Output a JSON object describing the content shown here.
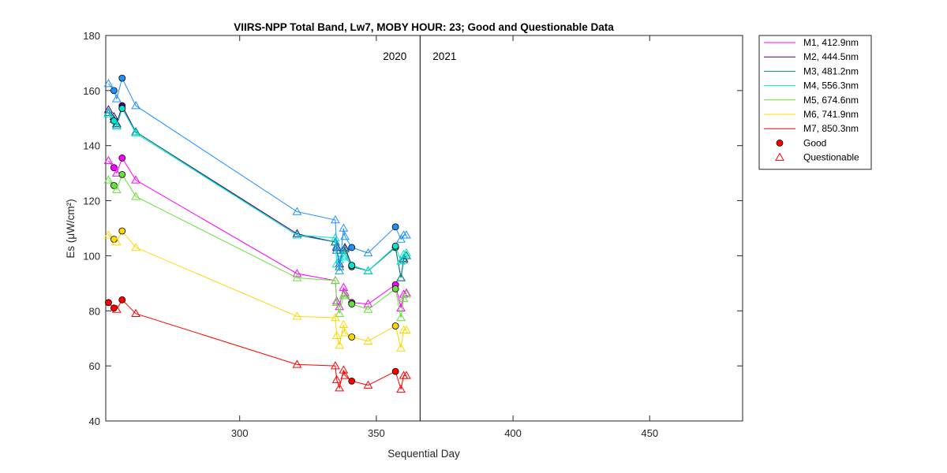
{
  "chart_data": {
    "type": "line",
    "title": "VIIRS-NPP Total Band,  Lw7, MOBY HOUR: 23;  Good and Questionable Data",
    "xlabel": "Sequential Day",
    "ylabel": "Es (μW/cm²)",
    "xlim": [
      251,
      484
    ],
    "ylim": [
      40,
      180
    ],
    "x_ticks": [
      "300",
      "350",
      "400",
      "450"
    ],
    "x_tick_values": [
      300,
      350,
      400,
      450
    ],
    "y_ticks": [
      "40",
      "60",
      "80",
      "100",
      "120",
      "140",
      "160",
      "180"
    ],
    "y_tick_values": [
      40,
      60,
      80,
      100,
      120,
      140,
      160,
      180
    ],
    "grid": false,
    "legend_position": "outside-right",
    "year_divider": {
      "x": 366,
      "left_label": "2020",
      "right_label": "2021"
    },
    "markers": [
      {
        "label": "Good",
        "shape": "circle",
        "color": "#ff0000"
      },
      {
        "label": "Questionable",
        "shape": "triangle",
        "color": "#ff0000"
      }
    ],
    "series": [
      {
        "name": "M1, 412.9nm",
        "color": "#ff00ff",
        "points": [
          [
            252,
            134.5,
            "Q"
          ],
          [
            254,
            132,
            "G"
          ],
          [
            255,
            130,
            "Q"
          ],
          [
            257,
            135.5,
            "G"
          ],
          [
            262,
            127.5,
            "Q"
          ],
          [
            321,
            93.5,
            "Q"
          ],
          [
            335,
            91,
            "Q"
          ],
          [
            335.5,
            83.5,
            "Q"
          ],
          [
            336.5,
            81.5,
            "Q"
          ],
          [
            338,
            88.5,
            "Q"
          ],
          [
            338.5,
            86.5,
            "Q"
          ],
          [
            341,
            83,
            "G"
          ],
          [
            347,
            82.5,
            "Q"
          ],
          [
            357,
            89.5,
            "G"
          ],
          [
            359,
            81,
            "Q"
          ],
          [
            360,
            86,
            "Q"
          ],
          [
            361,
            86.5,
            "Q"
          ]
        ]
      },
      {
        "name": "M2, 444.5nm",
        "color": "#4b0082",
        "points": [
          [
            252,
            153,
            "Q"
          ],
          [
            254,
            150.5,
            "Q"
          ],
          [
            255,
            148,
            "Q"
          ],
          [
            257,
            154.5,
            "G"
          ],
          [
            262,
            145,
            "Q"
          ],
          [
            321,
            108,
            "Q"
          ],
          [
            335,
            105,
            "Q"
          ],
          [
            335.5,
            103,
            "Q"
          ],
          [
            336.5,
            97,
            "Q"
          ],
          [
            338,
            102,
            "Q"
          ],
          [
            338.5,
            103,
            "Q"
          ],
          [
            341,
            96.5,
            "G"
          ],
          [
            347,
            94.5,
            "Q"
          ],
          [
            357,
            103,
            "G"
          ],
          [
            359,
            92,
            "Q"
          ],
          [
            360,
            99,
            "Q"
          ],
          [
            361,
            100,
            "Q"
          ]
        ]
      },
      {
        "name": "M3, 481.2nm",
        "color": "#008b8b",
        "points": [
          [
            252,
            152,
            "Q"
          ],
          [
            254,
            149.5,
            "Q"
          ],
          [
            255,
            147.5,
            "Q"
          ],
          [
            257,
            153.5,
            "G"
          ],
          [
            262,
            145,
            "Q"
          ],
          [
            321,
            107.5,
            "Q"
          ],
          [
            335,
            105,
            "Q"
          ],
          [
            335.5,
            102,
            "Q"
          ],
          [
            336.5,
            96,
            "Q"
          ],
          [
            338,
            102,
            "Q"
          ],
          [
            338.5,
            102.5,
            "Q"
          ],
          [
            341,
            96,
            "G"
          ],
          [
            347,
            94.5,
            "Q"
          ],
          [
            357,
            103,
            "G"
          ],
          [
            359,
            92,
            "Q"
          ],
          [
            360,
            98.5,
            "Q"
          ],
          [
            361,
            100,
            "Q"
          ]
        ]
      },
      {
        "name": "M4, 556.3nm",
        "color": "#00e5cc",
        "points": [
          [
            252,
            151.5,
            "Q"
          ],
          [
            254,
            149,
            "G"
          ],
          [
            255,
            147,
            "Q"
          ],
          [
            257,
            153.5,
            "G"
          ],
          [
            262,
            144.5,
            "Q"
          ],
          [
            321,
            107.5,
            "Q"
          ],
          [
            335,
            106.5,
            "Q"
          ],
          [
            335.5,
            97,
            "Q"
          ],
          [
            336.5,
            98.5,
            "Q"
          ],
          [
            338,
            100,
            "Q"
          ],
          [
            338.5,
            99.5,
            "Q"
          ],
          [
            341,
            96.5,
            "G"
          ],
          [
            347,
            94.5,
            "Q"
          ],
          [
            357,
            103.5,
            "G"
          ],
          [
            359,
            98,
            "Q"
          ],
          [
            360,
            100.5,
            "Q"
          ],
          [
            361,
            101,
            "Q"
          ]
        ]
      },
      {
        "name": "M5, 674.6nm",
        "color": "#66e03a",
        "points": [
          [
            252,
            127.5,
            "Q"
          ],
          [
            254,
            125.5,
            "G"
          ],
          [
            255,
            124,
            "Q"
          ],
          [
            257,
            129.5,
            "G"
          ],
          [
            262,
            121.5,
            "Q"
          ],
          [
            321,
            92,
            "Q"
          ],
          [
            335,
            91,
            "Q"
          ],
          [
            335.5,
            83,
            "Q"
          ],
          [
            336.5,
            79,
            "Q"
          ],
          [
            338,
            85.5,
            "Q"
          ],
          [
            338.5,
            86,
            "Q"
          ],
          [
            341,
            82.5,
            "G"
          ],
          [
            347,
            80.5,
            "Q"
          ],
          [
            357,
            88,
            "G"
          ],
          [
            359,
            77.5,
            "Q"
          ],
          [
            360,
            84.5,
            "Q"
          ],
          [
            361,
            86,
            "Q"
          ]
        ]
      },
      {
        "name": "M6, 741.9nm",
        "color": "#ffd700",
        "points": [
          [
            252,
            107.5,
            "Q"
          ],
          [
            254,
            106,
            "G"
          ],
          [
            255,
            105,
            "Q"
          ],
          [
            257,
            109,
            "G"
          ],
          [
            262,
            103,
            "Q"
          ],
          [
            321,
            78,
            "Q"
          ],
          [
            335,
            77.5,
            "Q"
          ],
          [
            335.5,
            71,
            "Q"
          ],
          [
            336.5,
            67.5,
            "Q"
          ],
          [
            338,
            75,
            "Q"
          ],
          [
            338.5,
            72,
            "Q"
          ],
          [
            341,
            70.5,
            "G"
          ],
          [
            347,
            69,
            "Q"
          ],
          [
            357,
            74.5,
            "G"
          ],
          [
            359,
            66.5,
            "Q"
          ],
          [
            360,
            73,
            "Q"
          ],
          [
            361,
            73,
            "Q"
          ]
        ]
      },
      {
        "name": "M7, 850.3nm",
        "color": "#ff0000",
        "points": [
          [
            252,
            83,
            "G"
          ],
          [
            254,
            81,
            "G"
          ],
          [
            255,
            80.5,
            "Q"
          ],
          [
            257,
            84,
            "G"
          ],
          [
            262,
            79,
            "Q"
          ],
          [
            321,
            60.5,
            "Q"
          ],
          [
            335,
            60,
            "Q"
          ],
          [
            335.5,
            55,
            "Q"
          ],
          [
            336.5,
            52,
            "Q"
          ],
          [
            338,
            58.5,
            "Q"
          ],
          [
            338.5,
            56.5,
            "Q"
          ],
          [
            341,
            54.5,
            "G"
          ],
          [
            347,
            53,
            "Q"
          ],
          [
            357,
            58,
            "G"
          ],
          [
            359,
            51.5,
            "Q"
          ],
          [
            360,
            56.5,
            "Q"
          ],
          [
            361,
            56.5,
            "Q"
          ]
        ]
      }
    ],
    "overlay_series": {
      "name": "",
      "color": "#1e90ff",
      "points": [
        [
          252,
          162.5,
          "Q"
        ],
        [
          254,
          160,
          "G"
        ],
        [
          255,
          157,
          "Q"
        ],
        [
          257,
          164.5,
          "G"
        ],
        [
          262,
          154.5,
          "Q"
        ],
        [
          321,
          116,
          "Q"
        ],
        [
          335,
          113,
          "Q"
        ],
        [
          335.5,
          103.5,
          "Q"
        ],
        [
          336.5,
          94.5,
          "Q"
        ],
        [
          338,
          110,
          "Q"
        ],
        [
          338.5,
          107,
          "Q"
        ],
        [
          341,
          103,
          "G"
        ],
        [
          347,
          101,
          "Q"
        ],
        [
          357,
          110.5,
          "G"
        ],
        [
          359,
          106,
          "Q"
        ],
        [
          360,
          107.5,
          "Q"
        ],
        [
          361,
          107.5,
          "Q"
        ]
      ]
    }
  }
}
